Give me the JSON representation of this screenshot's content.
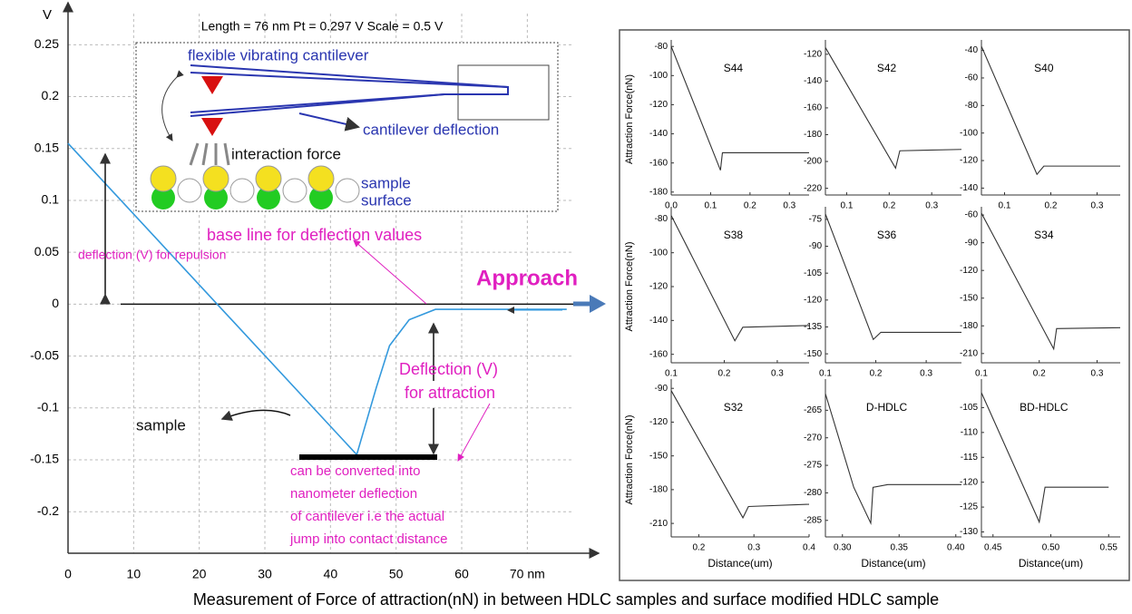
{
  "chart_data": [
    {
      "type": "line",
      "header": "Length = 76 nm  Pt = 0.297 V  Scale = 0.5 V",
      "y_label": "V",
      "x": [
        0,
        44,
        47,
        49,
        52,
        56,
        76
      ],
      "values": [
        0.155,
        -0.145,
        -0.08,
        -0.04,
        -0.015,
        -0.005,
        -0.005
      ],
      "color": "#3399dd",
      "xlim": [
        0,
        77
      ],
      "xticks": [
        0,
        10,
        20,
        30,
        40,
        50,
        60,
        {
          "value": 70,
          "label": "70 nm"
        }
      ],
      "ylim": [
        -0.24,
        0.28
      ],
      "yticks": [
        0.25,
        0.2,
        0.15,
        0.1,
        0.05,
        0,
        -0.05,
        -0.1,
        -0.15,
        -0.2
      ],
      "grid": true,
      "annotations": [
        "flexible vibrating cantilever",
        "cantilever deflection",
        "interaction force",
        "sample",
        "surface",
        "base line for deflection values",
        "deflection (V) for repulsion",
        "Approach",
        "Deflection (V)",
        "for attraction",
        "sample",
        "can be converted into",
        "nanometer deflection",
        "of cantilever i.e the actual",
        "jump into contact distance"
      ]
    },
    {
      "type": "line",
      "title": "S44",
      "y_label": "Attraction Force(nN)",
      "x": [
        0,
        0.125,
        0.13,
        0.35
      ],
      "values": [
        -80,
        -165,
        -153,
        -153
      ],
      "color": "#333333",
      "xlim": [
        0,
        0.35
      ],
      "xticks": [
        {
          "value": 0,
          "label": "0.0"
        },
        0.1,
        0.2,
        0.3
      ],
      "ylim": [
        -182,
        -78
      ],
      "yticks": [
        -80,
        -100,
        -120,
        -140,
        -160,
        -180
      ]
    },
    {
      "type": "line",
      "title": "S42",
      "x": [
        0.05,
        0.215,
        0.225,
        0.37
      ],
      "values": [
        -115,
        -205,
        -192,
        -191
      ],
      "color": "#333333",
      "xlim": [
        0.05,
        0.37
      ],
      "xticks": [
        0.1,
        0.2,
        0.3
      ],
      "ylim": [
        -225,
        -112
      ],
      "yticks": [
        -120,
        -140,
        -160,
        -180,
        -200,
        -220
      ]
    },
    {
      "type": "line",
      "title": "S40",
      "x": [
        0.05,
        0.17,
        0.185,
        0.35
      ],
      "values": [
        -37,
        -130,
        -124,
        -124
      ],
      "color": "#333333",
      "xlim": [
        0.05,
        0.35
      ],
      "xticks": [
        0.1,
        0.2,
        0.3
      ],
      "ylim": [
        -145,
        -35
      ],
      "yticks": [
        -40,
        -60,
        -80,
        -100,
        -120,
        -140
      ]
    },
    {
      "type": "line",
      "title": "S38",
      "y_label": "Attraction Force(nN)",
      "x": [
        0.1,
        0.22,
        0.235,
        0.36
      ],
      "values": [
        -78,
        -152,
        -144,
        -143
      ],
      "color": "#333333",
      "xlim": [
        0.1,
        0.36
      ],
      "xticks": [
        0.1,
        0.2,
        0.3
      ],
      "ylim": [
        -165,
        -75
      ],
      "yticks": [
        -80,
        -100,
        -120,
        -140,
        -160
      ]
    },
    {
      "type": "line",
      "title": "S36",
      "x": [
        0.1,
        0.195,
        0.21,
        0.37
      ],
      "values": [
        -72,
        -142,
        -138,
        -138
      ],
      "color": "#333333",
      "xlim": [
        0.1,
        0.37
      ],
      "xticks": [
        0.1,
        0.2,
        0.3
      ],
      "ylim": [
        -155,
        -70
      ],
      "yticks": [
        -75,
        -90,
        -105,
        -120,
        -135,
        -150
      ]
    },
    {
      "type": "line",
      "title": "S34",
      "x": [
        0.1,
        0.225,
        0.23,
        0.34
      ],
      "values": [
        -58,
        -205,
        -183,
        -182
      ],
      "color": "#333333",
      "xlim": [
        0.1,
        0.34
      ],
      "xticks": [
        0.1,
        0.2,
        0.3
      ],
      "ylim": [
        -220,
        -55
      ],
      "yticks": [
        -60,
        -90,
        -120,
        -150,
        -180,
        -210
      ]
    },
    {
      "type": "line",
      "title": "S32",
      "y_label": "Attraction Force(nN)",
      "x_label": "Distance(um)",
      "x": [
        0.15,
        0.28,
        0.29,
        0.4
      ],
      "values": [
        -92,
        -205,
        -195,
        -193
      ],
      "color": "#333333",
      "xlim": [
        0.15,
        0.4
      ],
      "xticks": [
        0.2,
        0.3,
        0.4
      ],
      "ylim": [
        -222,
        -85
      ],
      "yticks": [
        -90,
        -120,
        -150,
        -180,
        -210
      ]
    },
    {
      "type": "line",
      "title": "D-HDLC",
      "x_label": "Distance(um)",
      "x": [
        0.285,
        0.31,
        0.325,
        0.327,
        0.34,
        0.405
      ],
      "values": [
        -262,
        -279,
        -285.5,
        -279,
        -278.5,
        -278.5
      ],
      "color": "#333333",
      "xlim": [
        0.285,
        0.405
      ],
      "xticks": [
        {
          "value": 0.3,
          "label": "0.30"
        },
        0.35,
        {
          "value": 0.4,
          "label": "0.40"
        }
      ],
      "ylim": [
        -288,
        -260
      ],
      "yticks": [
        -265,
        -270,
        -275,
        -280,
        -285
      ]
    },
    {
      "type": "line",
      "title": "BD-HDLC",
      "x_label": "Distance(um)",
      "x": [
        0.44,
        0.49,
        0.495,
        0.55
      ],
      "values": [
        -102,
        -128,
        -121,
        -121
      ],
      "color": "#333333",
      "xlim": [
        0.44,
        0.56
      ],
      "xticks": [
        0.45,
        {
          "value": 0.5,
          "label": "0.50"
        },
        0.55
      ],
      "ylim": [
        -131,
        -100
      ],
      "yticks": [
        -105,
        -110,
        -115,
        -120,
        -125,
        -130
      ]
    }
  ],
  "caption": "Measurement of Force of attraction(nN) in between HDLC samples and surface modified HDLC sample"
}
